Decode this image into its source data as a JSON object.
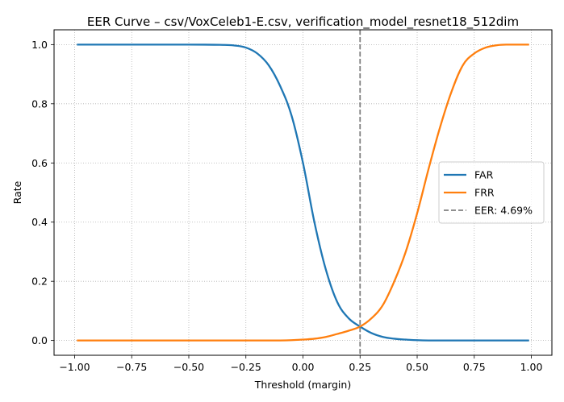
{
  "chart_data": {
    "type": "line",
    "title": "EER Curve – csv/VoxCeleb1-E.csv, verification_model_resnet18_512dim",
    "xlabel": "Threshold (margin)",
    "ylabel": "Rate",
    "xlim": [
      -1.09,
      1.09
    ],
    "ylim": [
      -0.05,
      1.05
    ],
    "x_ticks": [
      -1.0,
      -0.75,
      -0.5,
      -0.25,
      0.0,
      0.25,
      0.5,
      0.75,
      1.0
    ],
    "x_tick_labels": [
      "−1.00",
      "−0.75",
      "−0.50",
      "−0.25",
      "0.00",
      "0.25",
      "0.50",
      "0.75",
      "1.00"
    ],
    "y_ticks": [
      0.0,
      0.2,
      0.4,
      0.6,
      0.8,
      1.0
    ],
    "y_tick_labels": [
      "0.0",
      "0.2",
      "0.4",
      "0.6",
      "0.8",
      "1.0"
    ],
    "grid": true,
    "legend_position": "center-right",
    "x": [
      -0.99,
      -0.5,
      -0.35,
      -0.3,
      -0.25,
      -0.2,
      -0.15,
      -0.1,
      -0.05,
      0.0,
      0.05,
      0.1,
      0.15,
      0.2,
      0.25,
      0.3,
      0.35,
      0.4,
      0.45,
      0.5,
      0.55,
      0.6,
      0.65,
      0.7,
      0.75,
      0.8,
      0.85,
      0.9,
      0.99
    ],
    "series": [
      {
        "name": "FAR",
        "color": "#1f77b4",
        "values": [
          1.0,
          1.0,
          0.999,
          0.997,
          0.99,
          0.97,
          0.93,
          0.86,
          0.76,
          0.6,
          0.4,
          0.24,
          0.13,
          0.075,
          0.047,
          0.025,
          0.012,
          0.006,
          0.003,
          0.001,
          0.0,
          0.0,
          0.0,
          0.0,
          0.0,
          0.0,
          0.0,
          0.0,
          0.0
        ]
      },
      {
        "name": "FRR",
        "color": "#ff7f0e",
        "values": [
          0.0,
          0.0,
          0.0,
          0.0,
          0.0,
          0.0,
          0.0,
          0.0,
          0.001,
          0.003,
          0.006,
          0.012,
          0.022,
          0.033,
          0.047,
          0.075,
          0.12,
          0.2,
          0.3,
          0.43,
          0.58,
          0.72,
          0.84,
          0.93,
          0.97,
          0.99,
          0.998,
          1.0,
          1.0
        ]
      }
    ],
    "vline": {
      "label": "EER: 4.69%",
      "x": 0.25,
      "color": "#808080"
    }
  }
}
